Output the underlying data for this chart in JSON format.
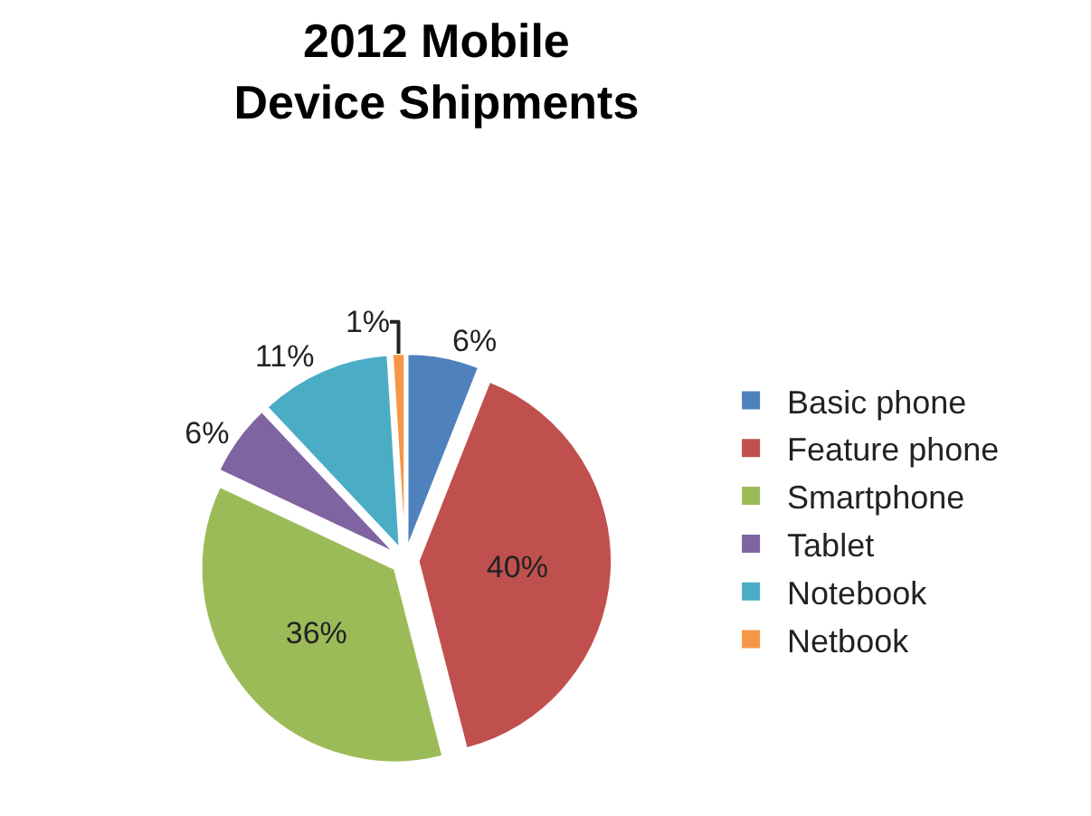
{
  "chart_data": {
    "type": "pie",
    "title": "2012 Mobile Device Shipments",
    "categories": [
      "Basic phone",
      "Feature phone",
      "Smartphone",
      "Tablet",
      "Notebook",
      "Netbook"
    ],
    "values": [
      6,
      40,
      36,
      6,
      11,
      1
    ],
    "value_labels": [
      "6%",
      "40%",
      "36%",
      "6%",
      "11%",
      "1%"
    ],
    "colors": [
      "#4f81bd",
      "#c0504d",
      "#9bbb59",
      "#8064a2",
      "#4bacc6",
      "#f79646"
    ],
    "legend": "right"
  }
}
